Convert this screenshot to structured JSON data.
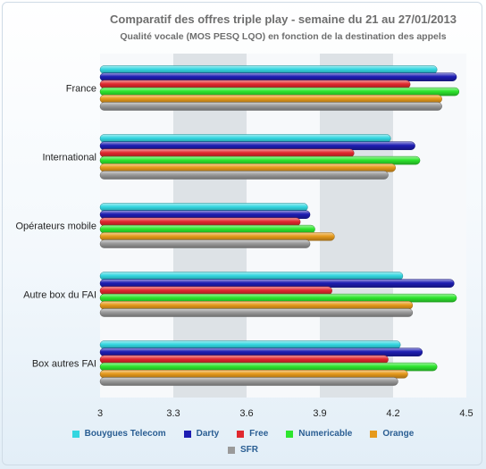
{
  "chart_data": {
    "type": "bar",
    "orientation": "horizontal",
    "title": "Comparatif des offres triple play - semaine du 21 au 27/01/2013",
    "subtitle": "Qualité vocale (MOS PESQ LQO) en fonction de la destination des appels",
    "categories": [
      "France",
      "International",
      "Opérateurs mobile",
      "Autre box du FAI",
      "Box autres FAI"
    ],
    "xlim": [
      3,
      4.5
    ],
    "ticks": [
      "3",
      "3.3",
      "3.6",
      "3.9",
      "4.2",
      "4.5"
    ],
    "grid": "alternating vertical bands",
    "legend_position": "bottom",
    "series": [
      {
        "name": "Bouygues Telecom",
        "color": "#33d6e0",
        "values": [
          4.38,
          4.19,
          3.85,
          4.24,
          4.23
        ]
      },
      {
        "name": "Darty",
        "color": "#1d1db2",
        "values": [
          4.46,
          4.29,
          3.86,
          4.45,
          4.32
        ]
      },
      {
        "name": "Free",
        "color": "#e0282e",
        "values": [
          4.27,
          4.04,
          3.82,
          3.95,
          4.18
        ]
      },
      {
        "name": "Numericable",
        "color": "#2ee62e",
        "values": [
          4.47,
          4.31,
          3.88,
          4.46,
          4.38
        ]
      },
      {
        "name": "Orange",
        "color": "#e69a1c",
        "values": [
          4.4,
          4.21,
          3.96,
          4.28,
          4.26
        ]
      },
      {
        "name": "SFR",
        "color": "#9a9a9a",
        "values": [
          4.4,
          4.18,
          3.86,
          4.28,
          4.22
        ]
      }
    ]
  }
}
